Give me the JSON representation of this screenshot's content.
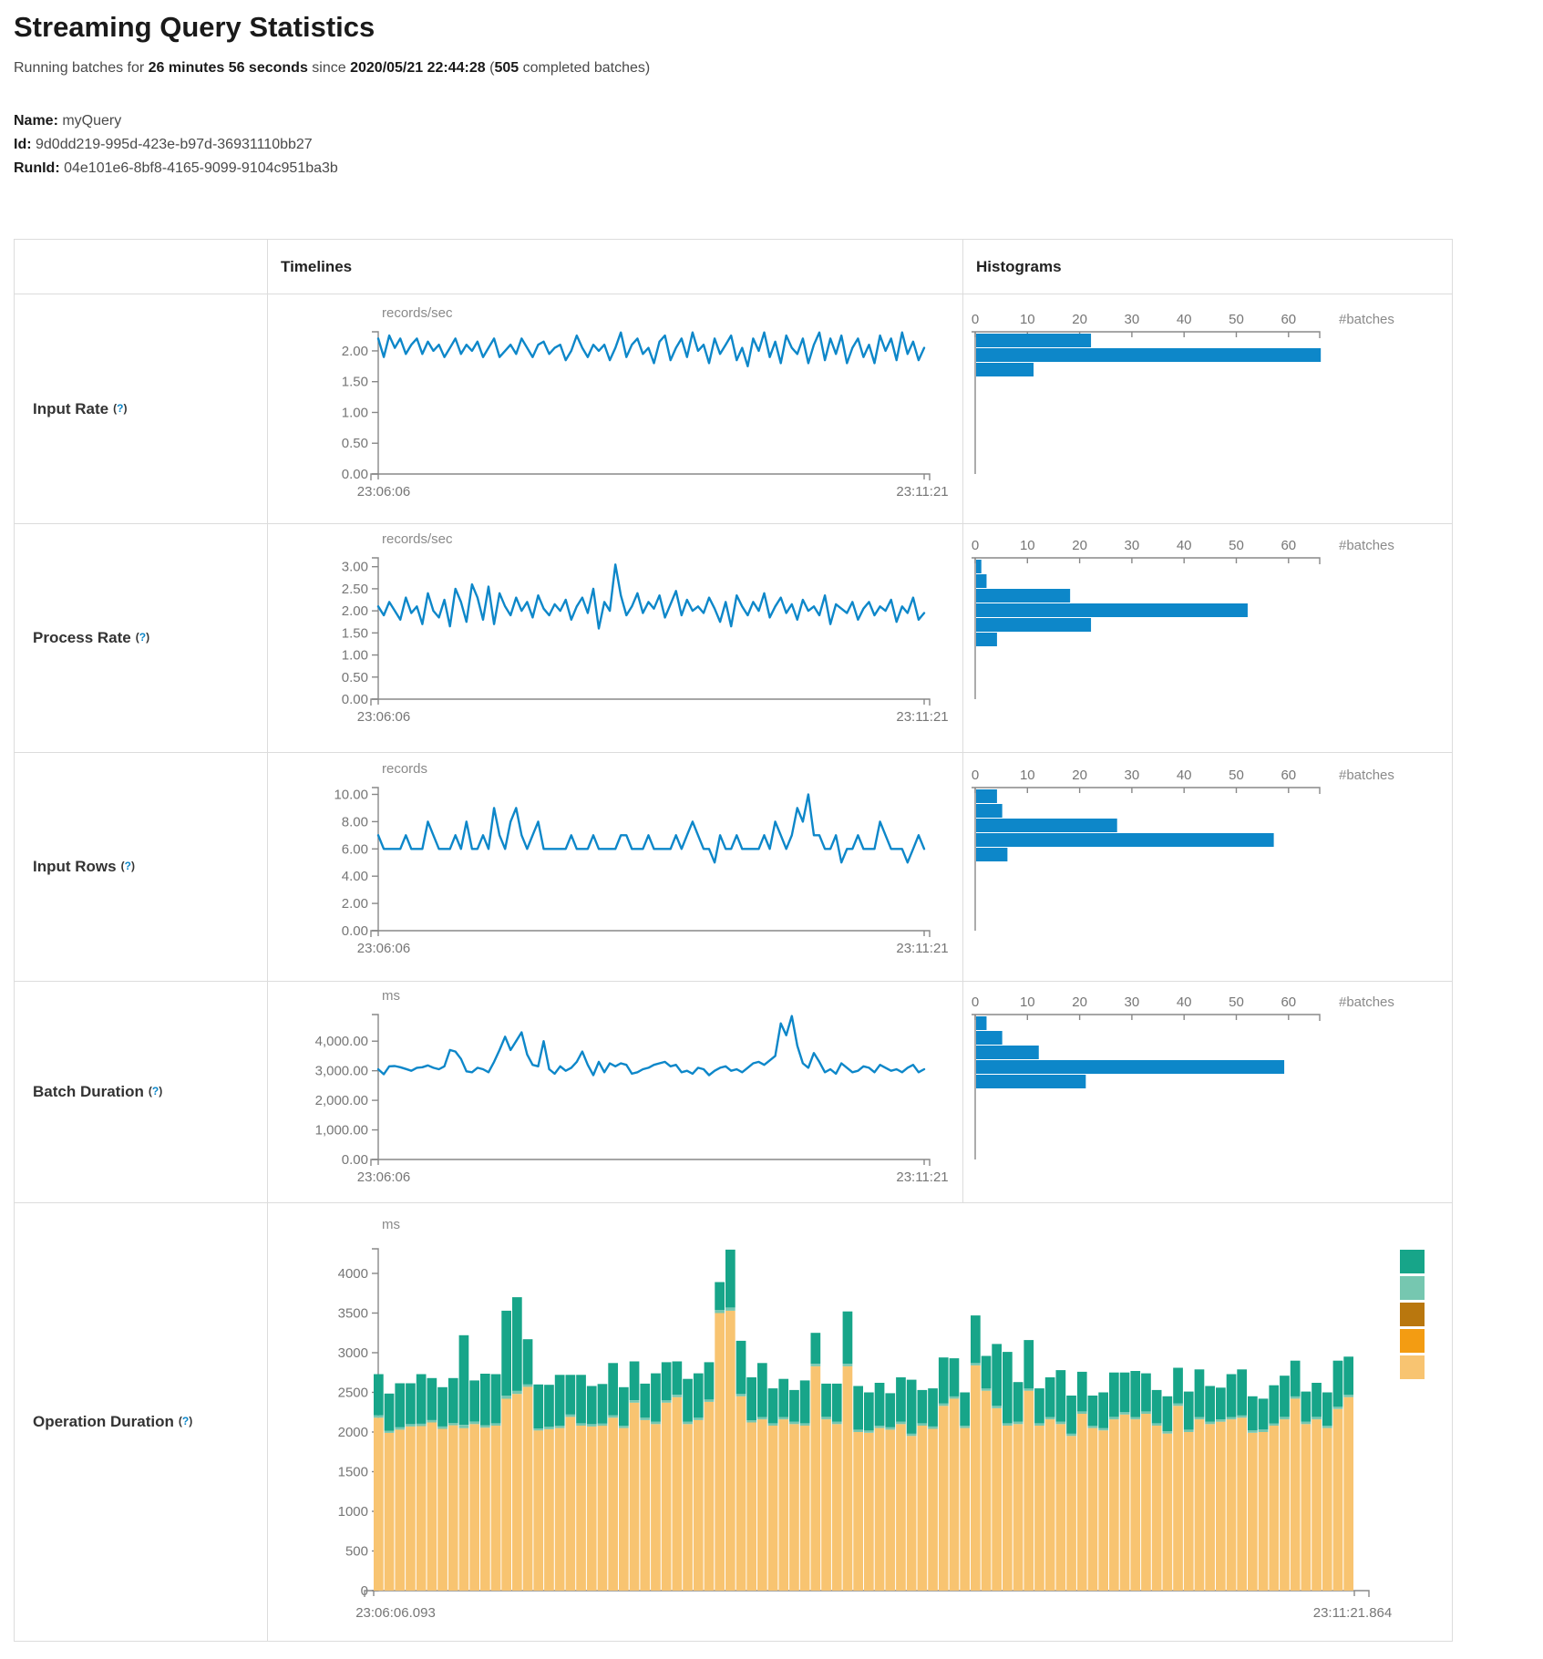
{
  "page": {
    "title": "Streaming Query Statistics",
    "subtitle": {
      "prefix": "Running batches for ",
      "duration": "26 minutes 56 seconds",
      "mid": " since ",
      "start_time": "2020/05/21 22:44:28",
      "open_paren": " (",
      "completed_batches": "505",
      "suffix": " completed batches)"
    },
    "name_label": "Name:",
    "name_value": " myQuery",
    "id_label": "Id:",
    "id_value": " 9d0dd219-995d-423e-b97d-36931110bb27",
    "runid_label": "RunId:",
    "runid_value": " 04e101e6-8bf8-4165-9099-9104c951ba3b"
  },
  "table": {
    "headers": {
      "timelines": "Timelines",
      "histograms": "Histograms"
    },
    "rows": [
      {
        "label": "Input Rate",
        "help": "?"
      },
      {
        "label": "Process Rate",
        "help": "?"
      },
      {
        "label": "Input Rows",
        "help": "?"
      },
      {
        "label": "Batch Duration",
        "help": "?"
      },
      {
        "label": "Operation Duration",
        "help": "?"
      }
    ]
  },
  "colors": {
    "line_blue": "#0d87c9",
    "hist_bar_blue": "#0d87c9",
    "axis_gray": "#888888",
    "tick_text_gray": "#767676",
    "border_gray": "#dcdcdc",
    "legend_green": "#17a589",
    "legend_light_teal": "#76c7b0",
    "legend_brown": "#b9770e",
    "legend_orange": "#f39c12",
    "legend_tan": "#f8c471"
  },
  "chart_data": [
    {
      "id": "input-rate-timeline",
      "type": "line",
      "title": "Input Rate timeline",
      "ylabel": "records/sec",
      "x_start": "23:06:06",
      "x_end": "23:11:21",
      "yticks": [
        {
          "v": 2,
          "label": "2.00"
        },
        {
          "v": 1.5,
          "label": "1.50"
        },
        {
          "v": 1,
          "label": "1.00"
        },
        {
          "v": 0.5,
          "label": "0.50"
        },
        {
          "v": 0,
          "label": "0.00"
        }
      ],
      "ylim": [
        0,
        2.31
      ],
      "values": [
        2.2,
        1.9,
        2.25,
        2.05,
        2.2,
        1.95,
        2.1,
        2.2,
        1.95,
        2.15,
        2.0,
        2.1,
        1.9,
        2.05,
        2.2,
        1.95,
        2.1,
        2.0,
        2.15,
        1.9,
        2.05,
        2.2,
        1.9,
        2.0,
        2.1,
        1.95,
        2.2,
        2.05,
        1.9,
        2.1,
        2.15,
        1.95,
        2.05,
        2.1,
        1.85,
        2.0,
        2.25,
        2.05,
        1.9,
        2.1,
        2.0,
        2.1,
        1.85,
        2.05,
        2.3,
        1.9,
        2.1,
        2.2,
        1.95,
        2.05,
        1.8,
        2.15,
        2.25,
        1.85,
        2.05,
        2.2,
        1.9,
        2.3,
        2.0,
        2.1,
        1.8,
        2.2,
        1.95,
        2.1,
        2.25,
        1.85,
        2.05,
        1.75,
        2.2,
        2.0,
        2.3,
        1.9,
        2.15,
        1.8,
        2.25,
        2.05,
        1.95,
        2.2,
        1.8,
        2.1,
        2.3,
        1.85,
        2.2,
        1.95,
        2.25,
        1.8,
        2.05,
        2.2,
        1.9,
        2.1,
        1.8,
        2.25,
        2.0,
        2.2,
        1.85,
        2.3,
        1.95,
        2.15,
        1.85,
        2.05
      ]
    },
    {
      "id": "input-rate-histogram",
      "type": "bar",
      "title": "Input Rate histogram",
      "xlabel": "#batches",
      "xticks": [
        0,
        10,
        20,
        30,
        40,
        50,
        60
      ],
      "xlim": [
        0,
        66
      ],
      "bin_counts": [
        22,
        66,
        11
      ]
    },
    {
      "id": "process-rate-timeline",
      "type": "line",
      "title": "Process Rate timeline",
      "ylabel": "records/sec",
      "x_start": "23:06:06",
      "x_end": "23:11:21",
      "yticks": [
        {
          "v": 3,
          "label": "3.00"
        },
        {
          "v": 2.5,
          "label": "2.50"
        },
        {
          "v": 2,
          "label": "2.00"
        },
        {
          "v": 1.5,
          "label": "1.50"
        },
        {
          "v": 1,
          "label": "1.00"
        },
        {
          "v": 0.5,
          "label": "0.50"
        },
        {
          "v": 0,
          "label": "0.00"
        }
      ],
      "ylim": [
        0,
        3.2
      ],
      "values": [
        2.1,
        1.9,
        2.2,
        2.0,
        1.8,
        2.3,
        1.95,
        2.1,
        1.7,
        2.4,
        2.0,
        1.85,
        2.25,
        1.65,
        2.5,
        2.2,
        1.75,
        2.6,
        2.3,
        1.8,
        2.55,
        1.7,
        2.4,
        2.1,
        1.9,
        2.3,
        2.0,
        2.2,
        1.85,
        2.35,
        2.05,
        1.9,
        2.15,
        2.0,
        2.25,
        1.8,
        2.1,
        2.3,
        1.95,
        2.5,
        1.6,
        2.2,
        2.0,
        3.05,
        2.35,
        1.9,
        2.1,
        2.4,
        1.95,
        2.2,
        2.05,
        2.35,
        1.85,
        2.15,
        2.45,
        1.9,
        2.25,
        2.0,
        2.1,
        1.95,
        2.3,
        2.05,
        1.75,
        2.2,
        1.65,
        2.35,
        2.1,
        1.9,
        2.2,
        2.0,
        2.4,
        1.85,
        2.1,
        2.3,
        1.95,
        2.15,
        1.8,
        2.25,
        2.0,
        2.1,
        1.9,
        2.35,
        1.7,
        2.15,
        2.05,
        1.95,
        2.2,
        1.8,
        2.05,
        2.2,
        1.9,
        2.1,
        2.0,
        2.25,
        1.75,
        2.1,
        1.95,
        2.3,
        1.8,
        1.95
      ]
    },
    {
      "id": "process-rate-histogram",
      "type": "bar",
      "title": "Process Rate histogram",
      "xlabel": "#batches",
      "xticks": [
        0,
        10,
        20,
        30,
        40,
        50,
        60
      ],
      "xlim": [
        0,
        66
      ],
      "bin_counts": [
        1,
        2,
        18,
        52,
        22,
        4
      ]
    },
    {
      "id": "input-rows-timeline",
      "type": "line",
      "title": "Input Rows timeline",
      "ylabel": "records",
      "x_start": "23:06:06",
      "x_end": "23:11:21",
      "yticks": [
        {
          "v": 10,
          "label": "10.00"
        },
        {
          "v": 8,
          "label": "8.00"
        },
        {
          "v": 6,
          "label": "6.00"
        },
        {
          "v": 4,
          "label": "4.00"
        },
        {
          "v": 2,
          "label": "2.00"
        },
        {
          "v": 0,
          "label": "0.00"
        }
      ],
      "ylim": [
        0,
        10.5
      ],
      "values": [
        7,
        6,
        6,
        6,
        6,
        7,
        6,
        6,
        6,
        8,
        7,
        6,
        6,
        6,
        7,
        6,
        8,
        6,
        6,
        7,
        6,
        9,
        7,
        6,
        8,
        9,
        7,
        6,
        7,
        8,
        6,
        6,
        6,
        6,
        6,
        7,
        6,
        6,
        6,
        7,
        6,
        6,
        6,
        6,
        7,
        7,
        6,
        6,
        6,
        7,
        6,
        6,
        6,
        6,
        7,
        6,
        7,
        8,
        7,
        6,
        6,
        5,
        7,
        6,
        6,
        7,
        6,
        6,
        6,
        6,
        7,
        6,
        8,
        7,
        6,
        7,
        9,
        8,
        10,
        7,
        7,
        6,
        6,
        7,
        5,
        6,
        6,
        7,
        6,
        6,
        6,
        8,
        7,
        6,
        6,
        6,
        5,
        6,
        7,
        6
      ]
    },
    {
      "id": "input-rows-histogram",
      "type": "bar",
      "title": "Input Rows histogram",
      "xlabel": "#batches",
      "xticks": [
        0,
        10,
        20,
        30,
        40,
        50,
        60
      ],
      "xlim": [
        0,
        66
      ],
      "bin_counts": [
        4,
        5,
        27,
        57,
        6
      ]
    },
    {
      "id": "batch-duration-timeline",
      "type": "line",
      "title": "Batch Duration timeline",
      "ylabel": "ms",
      "x_start": "23:06:06",
      "x_end": "23:11:21",
      "yticks": [
        {
          "v": 4000,
          "label": "4,000.00"
        },
        {
          "v": 3000,
          "label": "3,000.00"
        },
        {
          "v": 2000,
          "label": "2,000.00"
        },
        {
          "v": 1000,
          "label": "1,000.00"
        },
        {
          "v": 0,
          "label": "0.00"
        }
      ],
      "ylim": [
        0,
        4900
      ],
      "values": [
        3050,
        2880,
        3150,
        3160,
        3120,
        3060,
        3000,
        3100,
        3120,
        3180,
        3100,
        3050,
        3150,
        3700,
        3650,
        3400,
        2980,
        2950,
        3100,
        3050,
        2950,
        3300,
        3700,
        4150,
        3700,
        4000,
        4300,
        3550,
        3200,
        3150,
        4000,
        3050,
        2900,
        3150,
        3000,
        3100,
        3300,
        3650,
        3200,
        2850,
        3300,
        2950,
        3250,
        3150,
        3250,
        3200,
        2900,
        2950,
        3050,
        3100,
        3200,
        3250,
        3300,
        3150,
        3200,
        2950,
        3000,
        2900,
        3100,
        3050,
        2850,
        3000,
        3100,
        3150,
        3000,
        3050,
        2950,
        3100,
        3250,
        3300,
        3200,
        3350,
        3500,
        4600,
        4200,
        4850,
        3850,
        3250,
        3100,
        3600,
        3300,
        2950,
        3050,
        2900,
        3250,
        3100,
        2950,
        3000,
        3150,
        3100,
        2950,
        3200,
        3100,
        3000,
        3050,
        2950,
        3100,
        3200,
        2950,
        3050
      ]
    },
    {
      "id": "batch-duration-histogram",
      "type": "bar",
      "title": "Batch Duration histogram",
      "xlabel": "#batches",
      "xticks": [
        0,
        10,
        20,
        30,
        40,
        50,
        60
      ],
      "xlim": [
        0,
        66
      ],
      "bin_counts": [
        2,
        5,
        12,
        59,
        21
      ]
    },
    {
      "id": "operation-duration",
      "type": "bar",
      "subtype": "stacked",
      "title": "Operation Duration",
      "ylabel": "ms",
      "x_start": "23:06:06.093",
      "x_end": "23:11:21.864",
      "yticks": [
        {
          "v": 4000,
          "label": "4000"
        },
        {
          "v": 3500,
          "label": "3500"
        },
        {
          "v": 3000,
          "label": "3000"
        },
        {
          "v": 2500,
          "label": "2500"
        },
        {
          "v": 2000,
          "label": "2000"
        },
        {
          "v": 1500,
          "label": "1500"
        },
        {
          "v": 1000,
          "label": "1000"
        },
        {
          "v": 500,
          "label": "500"
        },
        {
          "v": 0,
          "label": "0"
        }
      ],
      "ylim": [
        0,
        4310
      ],
      "segment_order_bottom_to_top": [
        "tan",
        "light_teal",
        "green"
      ],
      "segment_colors": [
        "#f8c471",
        "#76c7b0",
        "#17a589"
      ],
      "legend_swatch_colors": [
        "#17a589",
        "#76c7b0",
        "#b9770e",
        "#f39c12",
        "#f8c471"
      ],
      "bars": [
        [
          2180,
          30,
          520
        ],
        [
          1990,
          25,
          470
        ],
        [
          2030,
          30,
          555
        ],
        [
          2070,
          30,
          515
        ],
        [
          2075,
          30,
          625
        ],
        [
          2120,
          30,
          530
        ],
        [
          2040,
          30,
          495
        ],
        [
          2085,
          30,
          565
        ],
        [
          2050,
          40,
          1130
        ],
        [
          2100,
          30,
          520
        ],
        [
          2055,
          30,
          650
        ],
        [
          2080,
          30,
          620
        ],
        [
          2420,
          40,
          1070
        ],
        [
          2480,
          40,
          1180
        ],
        [
          2570,
          30,
          570
        ],
        [
          2020,
          25,
          555
        ],
        [
          2035,
          30,
          530
        ],
        [
          2050,
          30,
          640
        ],
        [
          2190,
          30,
          500
        ],
        [
          2080,
          30,
          610
        ],
        [
          2070,
          30,
          480
        ],
        [
          2080,
          25,
          500
        ],
        [
          2180,
          30,
          660
        ],
        [
          2050,
          30,
          485
        ],
        [
          2370,
          30,
          490
        ],
        [
          2150,
          30,
          430
        ],
        [
          2100,
          30,
          610
        ],
        [
          2370,
          30,
          480
        ],
        [
          2440,
          30,
          420
        ],
        [
          2100,
          30,
          540
        ],
        [
          2150,
          30,
          560
        ],
        [
          2380,
          30,
          470
        ],
        [
          3500,
          40,
          350
        ],
        [
          3530,
          40,
          730
        ],
        [
          2450,
          30,
          670
        ],
        [
          2120,
          30,
          540
        ],
        [
          2160,
          30,
          680
        ],
        [
          2080,
          30,
          440
        ],
        [
          2160,
          30,
          480
        ],
        [
          2100,
          30,
          400
        ],
        [
          2080,
          30,
          540
        ],
        [
          2830,
          30,
          390
        ],
        [
          2160,
          30,
          420
        ],
        [
          2100,
          30,
          480
        ],
        [
          2830,
          30,
          660
        ],
        [
          2000,
          30,
          550
        ],
        [
          1990,
          30,
          480
        ],
        [
          2050,
          30,
          540
        ],
        [
          2030,
          30,
          430
        ],
        [
          2100,
          30,
          560
        ],
        [
          1950,
          30,
          680
        ],
        [
          2080,
          30,
          420
        ],
        [
          2040,
          30,
          480
        ],
        [
          2330,
          30,
          580
        ],
        [
          2420,
          30,
          480
        ],
        [
          2050,
          30,
          420
        ],
        [
          2840,
          30,
          600
        ],
        [
          2520,
          30,
          410
        ],
        [
          2300,
          30,
          780
        ],
        [
          2080,
          30,
          900
        ],
        [
          2100,
          30,
          500
        ],
        [
          2520,
          30,
          610
        ],
        [
          2080,
          30,
          440
        ],
        [
          2160,
          30,
          500
        ],
        [
          2100,
          30,
          650
        ],
        [
          1950,
          30,
          480
        ],
        [
          2230,
          30,
          500
        ],
        [
          2050,
          30,
          380
        ],
        [
          2020,
          30,
          450
        ],
        [
          2160,
          30,
          560
        ],
        [
          2220,
          30,
          500
        ],
        [
          2160,
          30,
          580
        ],
        [
          2230,
          30,
          480
        ],
        [
          2080,
          30,
          420
        ],
        [
          1980,
          30,
          440
        ],
        [
          2330,
          30,
          450
        ],
        [
          2000,
          30,
          480
        ],
        [
          2160,
          30,
          600
        ],
        [
          2100,
          30,
          450
        ],
        [
          2130,
          30,
          400
        ],
        [
          2160,
          30,
          540
        ],
        [
          2180,
          30,
          580
        ],
        [
          1990,
          30,
          430
        ],
        [
          2000,
          30,
          390
        ],
        [
          2080,
          30,
          480
        ],
        [
          2160,
          30,
          520
        ],
        [
          2420,
          30,
          450
        ],
        [
          2100,
          30,
          380
        ],
        [
          2160,
          30,
          430
        ],
        [
          2050,
          30,
          420
        ],
        [
          2290,
          30,
          580
        ],
        [
          2440,
          30,
          480
        ]
      ]
    }
  ]
}
